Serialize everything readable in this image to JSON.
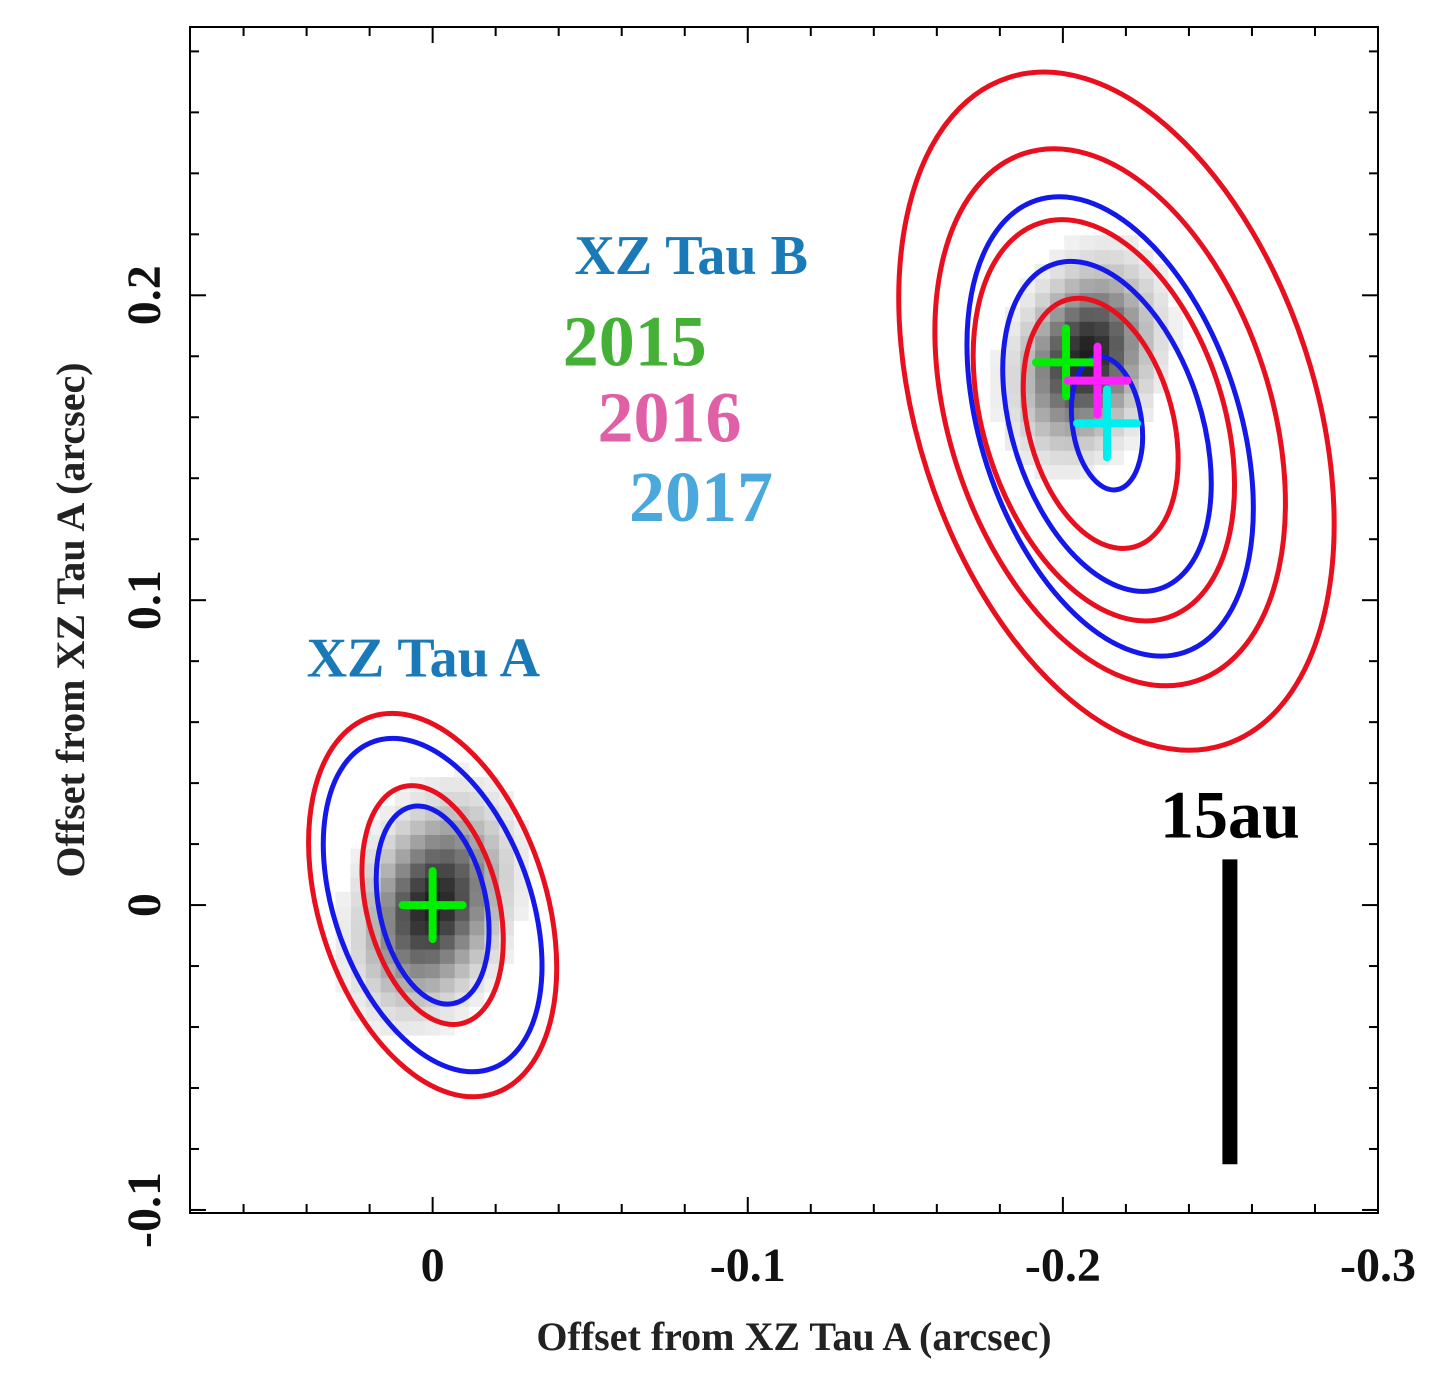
{
  "chart_data": {
    "type": "scatter",
    "xlabel": "Offset from XZ Tau A  (arcsec)",
    "ylabel": "Offset from XZ Tau A  (arcsec)",
    "xlim": [
      0.077,
      -0.3
    ],
    "ylim": [
      -0.101,
      0.288
    ],
    "x_ticks": [
      {
        "value": 0,
        "label": "0"
      },
      {
        "value": -0.1,
        "label": "-0.1"
      },
      {
        "value": -0.2,
        "label": "-0.2"
      },
      {
        "value": -0.3,
        "label": "-0.3"
      }
    ],
    "y_ticks": [
      {
        "value": -0.1,
        "label": "-0.1"
      },
      {
        "value": 0,
        "label": "0"
      },
      {
        "value": 0.1,
        "label": "0.1"
      },
      {
        "value": 0.2,
        "label": "0.2"
      }
    ],
    "minor_tick_step": 0.02,
    "grid": false,
    "image": "grayscale intensity map (two compact sources)",
    "sources": [
      {
        "name": "XZ Tau A",
        "label_x": 0.04,
        "label_y": 0.075,
        "color": "#1a7ab8"
      },
      {
        "name": "XZ Tau B",
        "label_x": -0.045,
        "label_y": 0.207,
        "color": "#1a7ab8"
      }
    ],
    "epochs": [
      {
        "name": "2015",
        "color": "#44b035",
        "marker_color": "#00ee00",
        "label_x": -0.087,
        "label_y": 0.177
      },
      {
        "name": "2016",
        "color": "#e060a8",
        "marker_color": "#ff20ff",
        "label_x": -0.098,
        "label_y": 0.152
      },
      {
        "name": "2017",
        "color": "#4aa8dc",
        "marker_color": "#00eeee",
        "label_x": -0.108,
        "label_y": 0.126
      }
    ],
    "markers": [
      {
        "series": "2015",
        "source": "XZ Tau A",
        "x": 0.0,
        "y": 0.0,
        "color": "#00ee00"
      },
      {
        "series": "2015",
        "source": "XZ Tau B",
        "x": -0.201,
        "y": 0.178,
        "color": "#00ee00"
      },
      {
        "series": "2016",
        "source": "XZ Tau B",
        "x": -0.211,
        "y": 0.172,
        "color": "#ff20ff"
      },
      {
        "series": "2017",
        "source": "XZ Tau B",
        "x": -0.214,
        "y": 0.158,
        "color": "#00eeee"
      }
    ],
    "contours": [
      {
        "source": "XZ Tau A",
        "color": "#e8101e",
        "cx": 0.0,
        "cy": 0.0,
        "rx": 0.021,
        "ry": 0.04,
        "angle": -14
      },
      {
        "source": "XZ Tau A",
        "color": "#e8101e",
        "cx": 0.0,
        "cy": 0.0,
        "rx": 0.036,
        "ry": 0.065,
        "angle": -18
      },
      {
        "source": "XZ Tau A",
        "color": "#1418e8",
        "cx": 0.0,
        "cy": 0.0,
        "rx": 0.017,
        "ry": 0.033,
        "angle": -12
      },
      {
        "source": "XZ Tau A",
        "color": "#1418e8",
        "cx": 0.0,
        "cy": 0.0,
        "rx": 0.031,
        "ry": 0.057,
        "angle": -20
      },
      {
        "source": "XZ Tau B",
        "color": "#e8101e",
        "cx": -0.212,
        "cy": 0.158,
        "rx": 0.023,
        "ry": 0.042,
        "angle": -15
      },
      {
        "source": "XZ Tau B",
        "color": "#e8101e",
        "cx": -0.213,
        "cy": 0.159,
        "rx": 0.038,
        "ry": 0.068,
        "angle": -18
      },
      {
        "source": "XZ Tau B",
        "color": "#e8101e",
        "cx": -0.215,
        "cy": 0.16,
        "rx": 0.051,
        "ry": 0.091,
        "angle": -18
      },
      {
        "source": "XZ Tau B",
        "color": "#e8101e",
        "cx": -0.217,
        "cy": 0.162,
        "rx": 0.063,
        "ry": 0.115,
        "angle": -18
      },
      {
        "source": "XZ Tau B",
        "color": "#1418e8",
        "cx": -0.214,
        "cy": 0.158,
        "rx": 0.011,
        "ry": 0.022,
        "angle": -8
      },
      {
        "source": "XZ Tau B",
        "color": "#1418e8",
        "cx": -0.214,
        "cy": 0.157,
        "rx": 0.03,
        "ry": 0.056,
        "angle": -18
      },
      {
        "source": "XZ Tau B",
        "color": "#1418e8",
        "cx": -0.215,
        "cy": 0.157,
        "rx": 0.041,
        "ry": 0.078,
        "angle": -18
      }
    ],
    "intensity_peaks": [
      {
        "source": "XZ Tau A",
        "x": 0.0,
        "y": 0.0,
        "sx": 0.023,
        "sy": 0.037,
        "width": 0.07,
        "height": 0.104
      },
      {
        "source": "XZ Tau B",
        "x": -0.207,
        "y": 0.18,
        "sx": 0.022,
        "sy": 0.034,
        "width": 0.062,
        "height": 0.118
      }
    ],
    "scale_bar": {
      "label": "15au",
      "x": -0.253,
      "y_top": 0.015,
      "y_bottom": -0.085
    }
  }
}
